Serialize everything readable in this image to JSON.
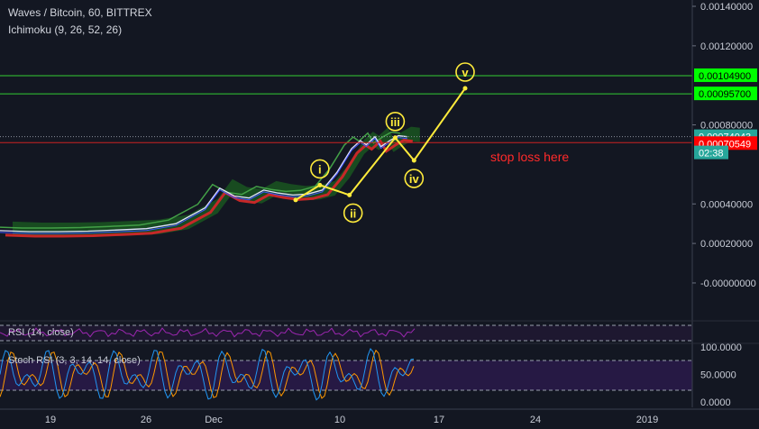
{
  "header": {
    "title": "Waves / Bitcoin, 60, BITTREX",
    "indicator": "Ichimoku (9, 26, 52, 26)"
  },
  "chart_data": {
    "type": "line",
    "main_pane": {
      "ylim": [
        -2e-07,
        0.0014
      ],
      "y_ticks": [
        {
          "value": 0.0014,
          "label": "0.00140000"
        },
        {
          "value": 0.0012,
          "label": "0.00120000"
        },
        {
          "value": 0.0008,
          "label": "0.00080000"
        },
        {
          "value": 0.0004,
          "label": "0.00040000"
        },
        {
          "value": 0.0002,
          "label": "0.00020000"
        },
        {
          "value": 0.0,
          "label": "-0.00000000"
        }
      ],
      "price_badges": [
        {
          "value": 0.001049,
          "label": "0.00104900",
          "color": "#00ff00",
          "text_color": "#000000"
        },
        {
          "value": 0.000957,
          "label": "0.00095700",
          "color": "#00ff00",
          "text_color": "#000000"
        },
        {
          "value": 0.00074043,
          "label": "0.00074043",
          "color": "#26a69a",
          "text_color": "#ffffff"
        },
        {
          "value": 0.00070549,
          "label": "0.00070549",
          "color": "#ff0000",
          "text_color": "#ffffff"
        }
      ],
      "countdown": "02:38",
      "horizontal_lines": [
        {
          "value": 0.001049,
          "color": "#33cc33"
        },
        {
          "value": 0.000957,
          "color": "#33cc33"
        },
        {
          "value": 0.00071,
          "color": "#cc2222"
        }
      ],
      "annotation_text": "stop loss here",
      "annotation_color": "#ff2a2a",
      "wave_points": [
        {
          "day": 8.6,
          "value": 0.00042,
          "label": ""
        },
        {
          "day": 9.5,
          "value": 0.000495,
          "label": "i"
        },
        {
          "day": 10.6,
          "value": 0.000445,
          "label": "ii"
        },
        {
          "day": 12.3,
          "value": 0.000735,
          "label": "iii"
        },
        {
          "day": 13.0,
          "value": 0.00062,
          "label": "iv"
        },
        {
          "day": 14.9,
          "value": 0.000985,
          "label": "v"
        }
      ],
      "price_series": {
        "name": "",
        "days": [
          0,
          1,
          2,
          3,
          4,
          5,
          6,
          7,
          7.5,
          8,
          8.5,
          9,
          9.5,
          10,
          10.5,
          11,
          11.5,
          12,
          12.3,
          12.5,
          12.8,
          13,
          13.3,
          13.6,
          13.9
        ],
        "values": [
          0.000265,
          0.00026,
          0.00026,
          0.000262,
          0.000268,
          0.000275,
          0.0003,
          0.00038,
          0.00048,
          0.00044,
          0.00043,
          0.00047,
          0.000455,
          0.000445,
          0.00045,
          0.00047,
          0.00056,
          0.00068,
          0.00072,
          0.0007,
          0.00074,
          0.00069,
          0.00072,
          0.000745,
          0.00074
        ]
      }
    },
    "x_axis": {
      "ticks": [
        {
          "day": 0,
          "label": "19"
        },
        {
          "day": 7,
          "label": "26"
        },
        {
          "day": 12,
          "label": "Dec"
        },
        {
          "day": 21,
          "label": "10"
        },
        {
          "day": 28,
          "label": "17"
        },
        {
          "day": 35,
          "label": "24"
        },
        {
          "day": 43,
          "label": "2019"
        }
      ]
    },
    "rsi_pane": {
      "label": "RSI (14, close)",
      "color": "#9c27b0"
    },
    "stoch_pane": {
      "label": "Stoch RSI (3, 3, 14, 14, close)",
      "y_ticks": [
        {
          "value": 100,
          "label": "100.0000"
        },
        {
          "value": 50,
          "label": "50.0000"
        },
        {
          "value": 0,
          "label": "0.0000"
        }
      ],
      "k_color": "#2196f3",
      "d_color": "#ff9800"
    }
  }
}
